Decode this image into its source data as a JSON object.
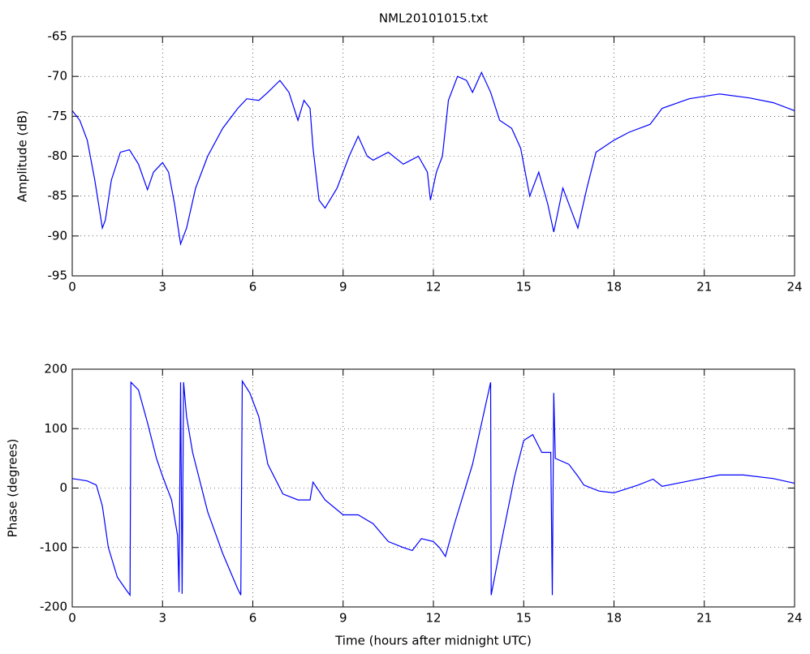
{
  "chart_data": [
    {
      "type": "line",
      "title": "NML20101015.txt",
      "y_label": "Amplitude (dB)",
      "color": "#0000ff",
      "grid": true,
      "xlim": [
        0,
        24
      ],
      "xticks": [
        0,
        3,
        6,
        9,
        12,
        15,
        18,
        21,
        24
      ],
      "ylim": [
        -95,
        -65
      ],
      "yticks": [
        -95,
        -90,
        -85,
        -80,
        -75,
        -70,
        -65
      ],
      "x": [
        0,
        0.25,
        0.5,
        0.75,
        1.0,
        1.1,
        1.3,
        1.6,
        1.9,
        2.2,
        2.5,
        2.7,
        3.0,
        3.2,
        3.4,
        3.6,
        3.8,
        4.1,
        4.5,
        5.0,
        5.5,
        5.8,
        6.2,
        6.5,
        6.9,
        7.2,
        7.5,
        7.7,
        7.9,
        8.0,
        8.2,
        8.4,
        8.8,
        9.2,
        9.5,
        9.8,
        10.0,
        10.5,
        11.0,
        11.5,
        11.8,
        11.9,
        12.1,
        12.3,
        12.5,
        12.8,
        13.1,
        13.3,
        13.6,
        13.9,
        14.2,
        14.6,
        14.9,
        15.2,
        15.5,
        15.8,
        16.0,
        16.3,
        16.6,
        16.8,
        17.1,
        17.4,
        18.0,
        18.5,
        19.2,
        19.6,
        20.5,
        21.5,
        22.5,
        23.3,
        24
      ],
      "values": [
        -74.3,
        -75.5,
        -78,
        -83,
        -89,
        -88,
        -83,
        -79.5,
        -79.2,
        -81,
        -84.2,
        -82,
        -80.8,
        -82,
        -86,
        -91,
        -89,
        -84,
        -80,
        -76.5,
        -74,
        -72.8,
        -73,
        -72,
        -70.5,
        -72,
        -75.5,
        -73,
        -74,
        -79,
        -85.5,
        -86.5,
        -84,
        -80,
        -77.5,
        -80,
        -80.5,
        -79.5,
        -81,
        -80,
        -82,
        -85.5,
        -82,
        -80,
        -73,
        -70,
        -70.5,
        -72,
        -69.5,
        -72,
        -75.5,
        -76.5,
        -79,
        -85,
        -82,
        -86,
        -89.5,
        -84,
        -87,
        -89,
        -84,
        -79.5,
        -78,
        -77,
        -76,
        -74,
        -72.8,
        -72.2,
        -72.7,
        -73.3,
        -74.3
      ]
    },
    {
      "type": "line",
      "x_label": "Time (hours after midnight UTC)",
      "y_label": "Phase (degrees)",
      "color": "#0000ff",
      "grid": true,
      "xlim": [
        0,
        24
      ],
      "xticks": [
        0,
        3,
        6,
        9,
        12,
        15,
        18,
        21,
        24
      ],
      "ylim": [
        -200,
        200
      ],
      "yticks": [
        -200,
        -100,
        0,
        100,
        200
      ],
      "x": [
        0,
        0.5,
        0.8,
        1.0,
        1.2,
        1.5,
        1.8,
        1.92,
        1.95,
        2.2,
        2.5,
        2.8,
        3.0,
        3.3,
        3.5,
        3.55,
        3.6,
        3.65,
        3.7,
        3.8,
        4.0,
        4.5,
        5.0,
        5.5,
        5.6,
        5.65,
        5.9,
        6.2,
        6.5,
        7.0,
        7.5,
        7.9,
        8.0,
        8.4,
        9.0,
        9.5,
        10.0,
        10.5,
        11.0,
        11.3,
        11.6,
        12.0,
        12.2,
        12.4,
        12.7,
        13.3,
        13.9,
        13.92,
        14.3,
        14.7,
        15.0,
        15.3,
        15.6,
        15.9,
        15.95,
        16.0,
        16.05,
        16.5,
        16.8,
        17.0,
        17.5,
        18.0,
        18.8,
        19.3,
        19.6,
        20.5,
        21.5,
        22.3,
        23.3,
        24
      ],
      "values": [
        16,
        12,
        5,
        -30,
        -100,
        -150,
        -172,
        -180,
        178,
        165,
        110,
        50,
        20,
        -20,
        -80,
        -175,
        178,
        -178,
        178,
        120,
        60,
        -40,
        -110,
        -170,
        -180,
        180,
        160,
        120,
        40,
        -10,
        -20,
        -20,
        10,
        -20,
        -45,
        -45,
        -60,
        -90,
        -100,
        -105,
        -85,
        -90,
        -100,
        -115,
        -60,
        40,
        178,
        -180,
        -80,
        20,
        80,
        90,
        60,
        60,
        -180,
        160,
        50,
        40,
        20,
        5,
        -5,
        -8,
        5,
        15,
        3,
        12,
        22,
        22,
        16,
        8
      ]
    }
  ]
}
